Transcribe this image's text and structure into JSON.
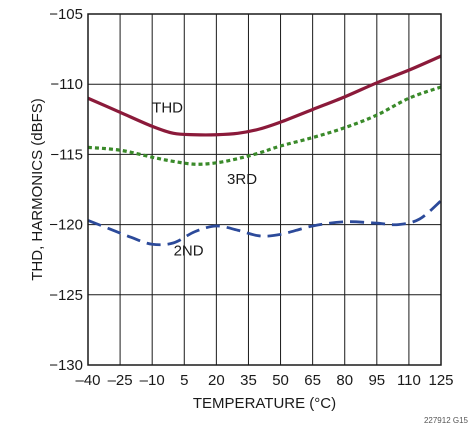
{
  "chart_data": {
    "type": "line",
    "title": "",
    "xlabel": "TEMPERATURE (°C)",
    "ylabel": "THD, HARMONICS (dBFS)",
    "xlim": [
      -40,
      125
    ],
    "ylim": [
      -130,
      -105
    ],
    "xticks": [
      -40,
      -25,
      -10,
      5,
      20,
      35,
      50,
      65,
      80,
      95,
      110,
      125
    ],
    "yticks": [
      -130,
      -125,
      -120,
      -115,
      -110,
      -105
    ],
    "grid": true,
    "footnote": "227912 G15",
    "series": [
      {
        "name": "THD",
        "color": "#8b1a3a",
        "style": "solid",
        "label_at": [
          -10,
          -112
        ],
        "x": [
          -40,
          -25,
          -10,
          0,
          10,
          20,
          30,
          40,
          50,
          65,
          80,
          95,
          110,
          125
        ],
        "y": [
          -111.0,
          -112.0,
          -113.0,
          -113.5,
          -113.6,
          -113.6,
          -113.5,
          -113.2,
          -112.7,
          -111.8,
          -110.9,
          -109.9,
          -109.0,
          -108.0
        ]
      },
      {
        "name": "3RD",
        "color": "#3a8a2a",
        "style": "dotted",
        "label_at": [
          25,
          -117.1
        ],
        "x": [
          -40,
          -25,
          -10,
          0,
          10,
          20,
          30,
          40,
          50,
          65,
          80,
          95,
          110,
          125
        ],
        "y": [
          -114.5,
          -114.7,
          -115.2,
          -115.5,
          -115.7,
          -115.6,
          -115.3,
          -114.9,
          -114.4,
          -113.8,
          -113.1,
          -112.2,
          -111.0,
          -110.2
        ]
      },
      {
        "name": "2ND",
        "color": "#2c4a9a",
        "style": "dashed",
        "label_at": [
          0,
          -122.2
        ],
        "x": [
          -40,
          -30,
          -20,
          -10,
          0,
          10,
          20,
          30,
          40,
          50,
          65,
          80,
          95,
          105,
          115,
          125
        ],
        "y": [
          -119.7,
          -120.3,
          -120.9,
          -121.4,
          -121.3,
          -120.5,
          -120.1,
          -120.4,
          -120.8,
          -120.7,
          -120.1,
          -119.8,
          -119.9,
          -120.0,
          -119.6,
          -118.3
        ]
      }
    ]
  }
}
